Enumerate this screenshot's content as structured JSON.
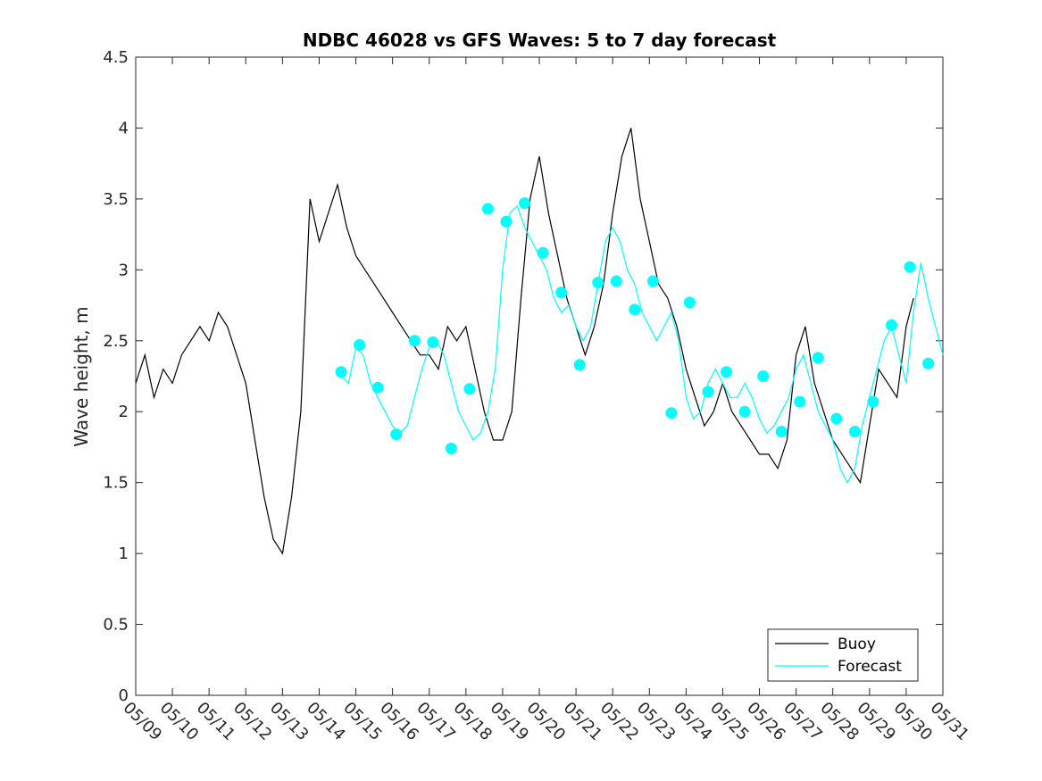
{
  "chart_data": {
    "type": "line",
    "title": "NDBC 46028 vs GFS Waves: 5 to 7 day forecast",
    "xlabel": "",
    "ylabel": "Wave height, m",
    "xlim": [
      0,
      22
    ],
    "ylim": [
      0,
      4.5
    ],
    "yticks": [
      0,
      0.5,
      1,
      1.5,
      2,
      2.5,
      3,
      3.5,
      4,
      4.5
    ],
    "ytick_labels": [
      "0",
      "0.5",
      "1",
      "1.5",
      "2",
      "2.5",
      "3",
      "3.5",
      "4",
      "4.5"
    ],
    "xtick_labels": [
      "05/09",
      "05/10",
      "05/11",
      "05/12",
      "05/13",
      "05/14",
      "05/15",
      "05/16",
      "05/17",
      "05/18",
      "05/19",
      "05/20",
      "05/21",
      "05/22",
      "05/23",
      "05/24",
      "05/25",
      "05/26",
      "05/27",
      "05/28",
      "05/29",
      "05/30",
      "05/31"
    ],
    "legend": {
      "position": "bottom-right",
      "entries": [
        "Buoy",
        "Forecast"
      ]
    },
    "colors": {
      "buoy": "#000000",
      "forecast": "#00ffff",
      "marker": "#00ffff",
      "axes": "#262626"
    },
    "grid": false,
    "series": [
      {
        "name": "Buoy",
        "x": [
          0,
          0.25,
          0.5,
          0.75,
          1.0,
          1.25,
          1.5,
          1.75,
          2.0,
          2.25,
          2.5,
          2.75,
          3.0,
          3.25,
          3.5,
          3.75,
          4.0,
          4.25,
          4.5,
          4.75,
          5.0,
          5.25,
          5.5,
          5.75,
          6.0,
          6.25,
          6.5,
          6.75,
          7.0,
          7.25,
          7.5,
          7.75,
          8.0,
          8.25,
          8.5,
          8.75,
          9.0,
          9.25,
          9.5,
          9.75,
          10.0,
          10.25,
          10.5,
          10.75,
          11.0,
          11.25,
          11.5,
          11.75,
          12.0,
          12.25,
          12.5,
          12.75,
          13.0,
          13.25,
          13.5,
          13.75,
          14.0,
          14.25,
          14.5,
          14.75,
          15.0,
          15.25,
          15.5,
          15.75,
          16.0,
          16.25,
          16.5,
          16.75,
          17.0,
          17.25,
          17.5,
          17.75,
          18.0,
          18.25,
          18.5,
          18.75,
          19.0,
          19.25,
          19.5,
          19.75,
          20.0,
          20.25,
          20.5,
          20.75,
          21.0,
          21.2
        ],
        "y": [
          2.2,
          2.4,
          2.1,
          2.3,
          2.2,
          2.4,
          2.5,
          2.6,
          2.5,
          2.7,
          2.6,
          2.4,
          2.2,
          1.8,
          1.4,
          1.1,
          1.0,
          1.4,
          2.0,
          3.5,
          3.2,
          3.4,
          3.6,
          3.3,
          3.1,
          3.0,
          2.9,
          2.8,
          2.7,
          2.6,
          2.5,
          2.4,
          2.4,
          2.3,
          2.6,
          2.5,
          2.6,
          2.3,
          2.0,
          1.8,
          1.8,
          2.0,
          2.8,
          3.5,
          3.8,
          3.4,
          3.1,
          2.8,
          2.6,
          2.4,
          2.6,
          2.9,
          3.4,
          3.8,
          4.0,
          3.5,
          3.2,
          2.9,
          2.8,
          2.6,
          2.3,
          2.1,
          1.9,
          2.0,
          2.2,
          2.0,
          1.9,
          1.8,
          1.7,
          1.7,
          1.6,
          1.8,
          2.4,
          2.6,
          2.2,
          2.0,
          1.8,
          1.7,
          1.6,
          1.5,
          1.9,
          2.3,
          2.2,
          2.1,
          2.6,
          2.8
        ]
      },
      {
        "name": "Forecast",
        "x": [
          5.6,
          5.8,
          6.0,
          6.2,
          6.4,
          6.6,
          6.8,
          7.0,
          7.2,
          7.4,
          7.6,
          7.8,
          8.0,
          8.2,
          8.4,
          8.6,
          8.8,
          9.0,
          9.2,
          9.4,
          9.6,
          9.8,
          10.0,
          10.2,
          10.4,
          10.6,
          10.8,
          11.0,
          11.2,
          11.4,
          11.6,
          11.8,
          12.0,
          12.2,
          12.4,
          12.6,
          12.8,
          13.0,
          13.2,
          13.4,
          13.6,
          13.8,
          14.0,
          14.2,
          14.4,
          14.6,
          14.8,
          15.0,
          15.2,
          15.4,
          15.6,
          15.8,
          16.0,
          16.2,
          16.4,
          16.6,
          16.8,
          17.0,
          17.2,
          17.4,
          17.6,
          17.8,
          18.0,
          18.2,
          18.4,
          18.6,
          18.8,
          19.0,
          19.2,
          19.4,
          19.6,
          19.8,
          20.0,
          20.2,
          20.4,
          20.6,
          20.8,
          21.0,
          21.2,
          21.4,
          21.6,
          21.8,
          22.0
        ],
        "y": [
          2.25,
          2.2,
          2.45,
          2.4,
          2.2,
          2.1,
          2.0,
          1.9,
          1.85,
          1.9,
          2.1,
          2.3,
          2.45,
          2.5,
          2.4,
          2.2,
          2.0,
          1.9,
          1.8,
          1.85,
          2.0,
          2.3,
          3.0,
          3.4,
          3.45,
          3.3,
          3.2,
          3.1,
          3.0,
          2.8,
          2.7,
          2.75,
          2.6,
          2.5,
          2.6,
          2.9,
          3.2,
          3.3,
          3.2,
          3.0,
          2.9,
          2.7,
          2.6,
          2.5,
          2.6,
          2.7,
          2.5,
          2.1,
          1.95,
          2.0,
          2.2,
          2.3,
          2.2,
          2.1,
          2.1,
          2.2,
          2.1,
          1.95,
          1.85,
          1.9,
          2.0,
          2.1,
          2.3,
          2.4,
          2.2,
          2.0,
          1.9,
          1.8,
          1.6,
          1.5,
          1.6,
          1.9,
          2.1,
          2.3,
          2.5,
          2.6,
          2.4,
          2.2,
          2.7,
          3.05,
          2.8,
          2.6,
          2.4
        ]
      }
    ],
    "forecast_markers": {
      "x": [
        5.6,
        6.1,
        6.6,
        7.1,
        7.6,
        8.1,
        8.6,
        9.1,
        9.6,
        10.1,
        10.6,
        11.1,
        11.6,
        12.1,
        12.6,
        13.1,
        13.6,
        14.1,
        14.6,
        15.1,
        15.6,
        16.1,
        16.6,
        17.1,
        17.6,
        18.1,
        18.6,
        19.1,
        19.6,
        20.1,
        20.6,
        21.1,
        21.6
      ],
      "y": [
        2.28,
        2.47,
        2.17,
        1.84,
        2.5,
        2.49,
        1.74,
        2.16,
        3.43,
        3.34,
        3.47,
        3.12,
        2.84,
        2.33,
        2.91,
        2.92,
        2.72,
        2.92,
        1.99,
        2.77,
        2.14,
        2.28,
        2.0,
        2.25,
        1.86,
        2.07,
        2.38,
        1.95,
        1.86,
        2.07,
        2.61,
        3.02,
        2.34
      ]
    }
  }
}
